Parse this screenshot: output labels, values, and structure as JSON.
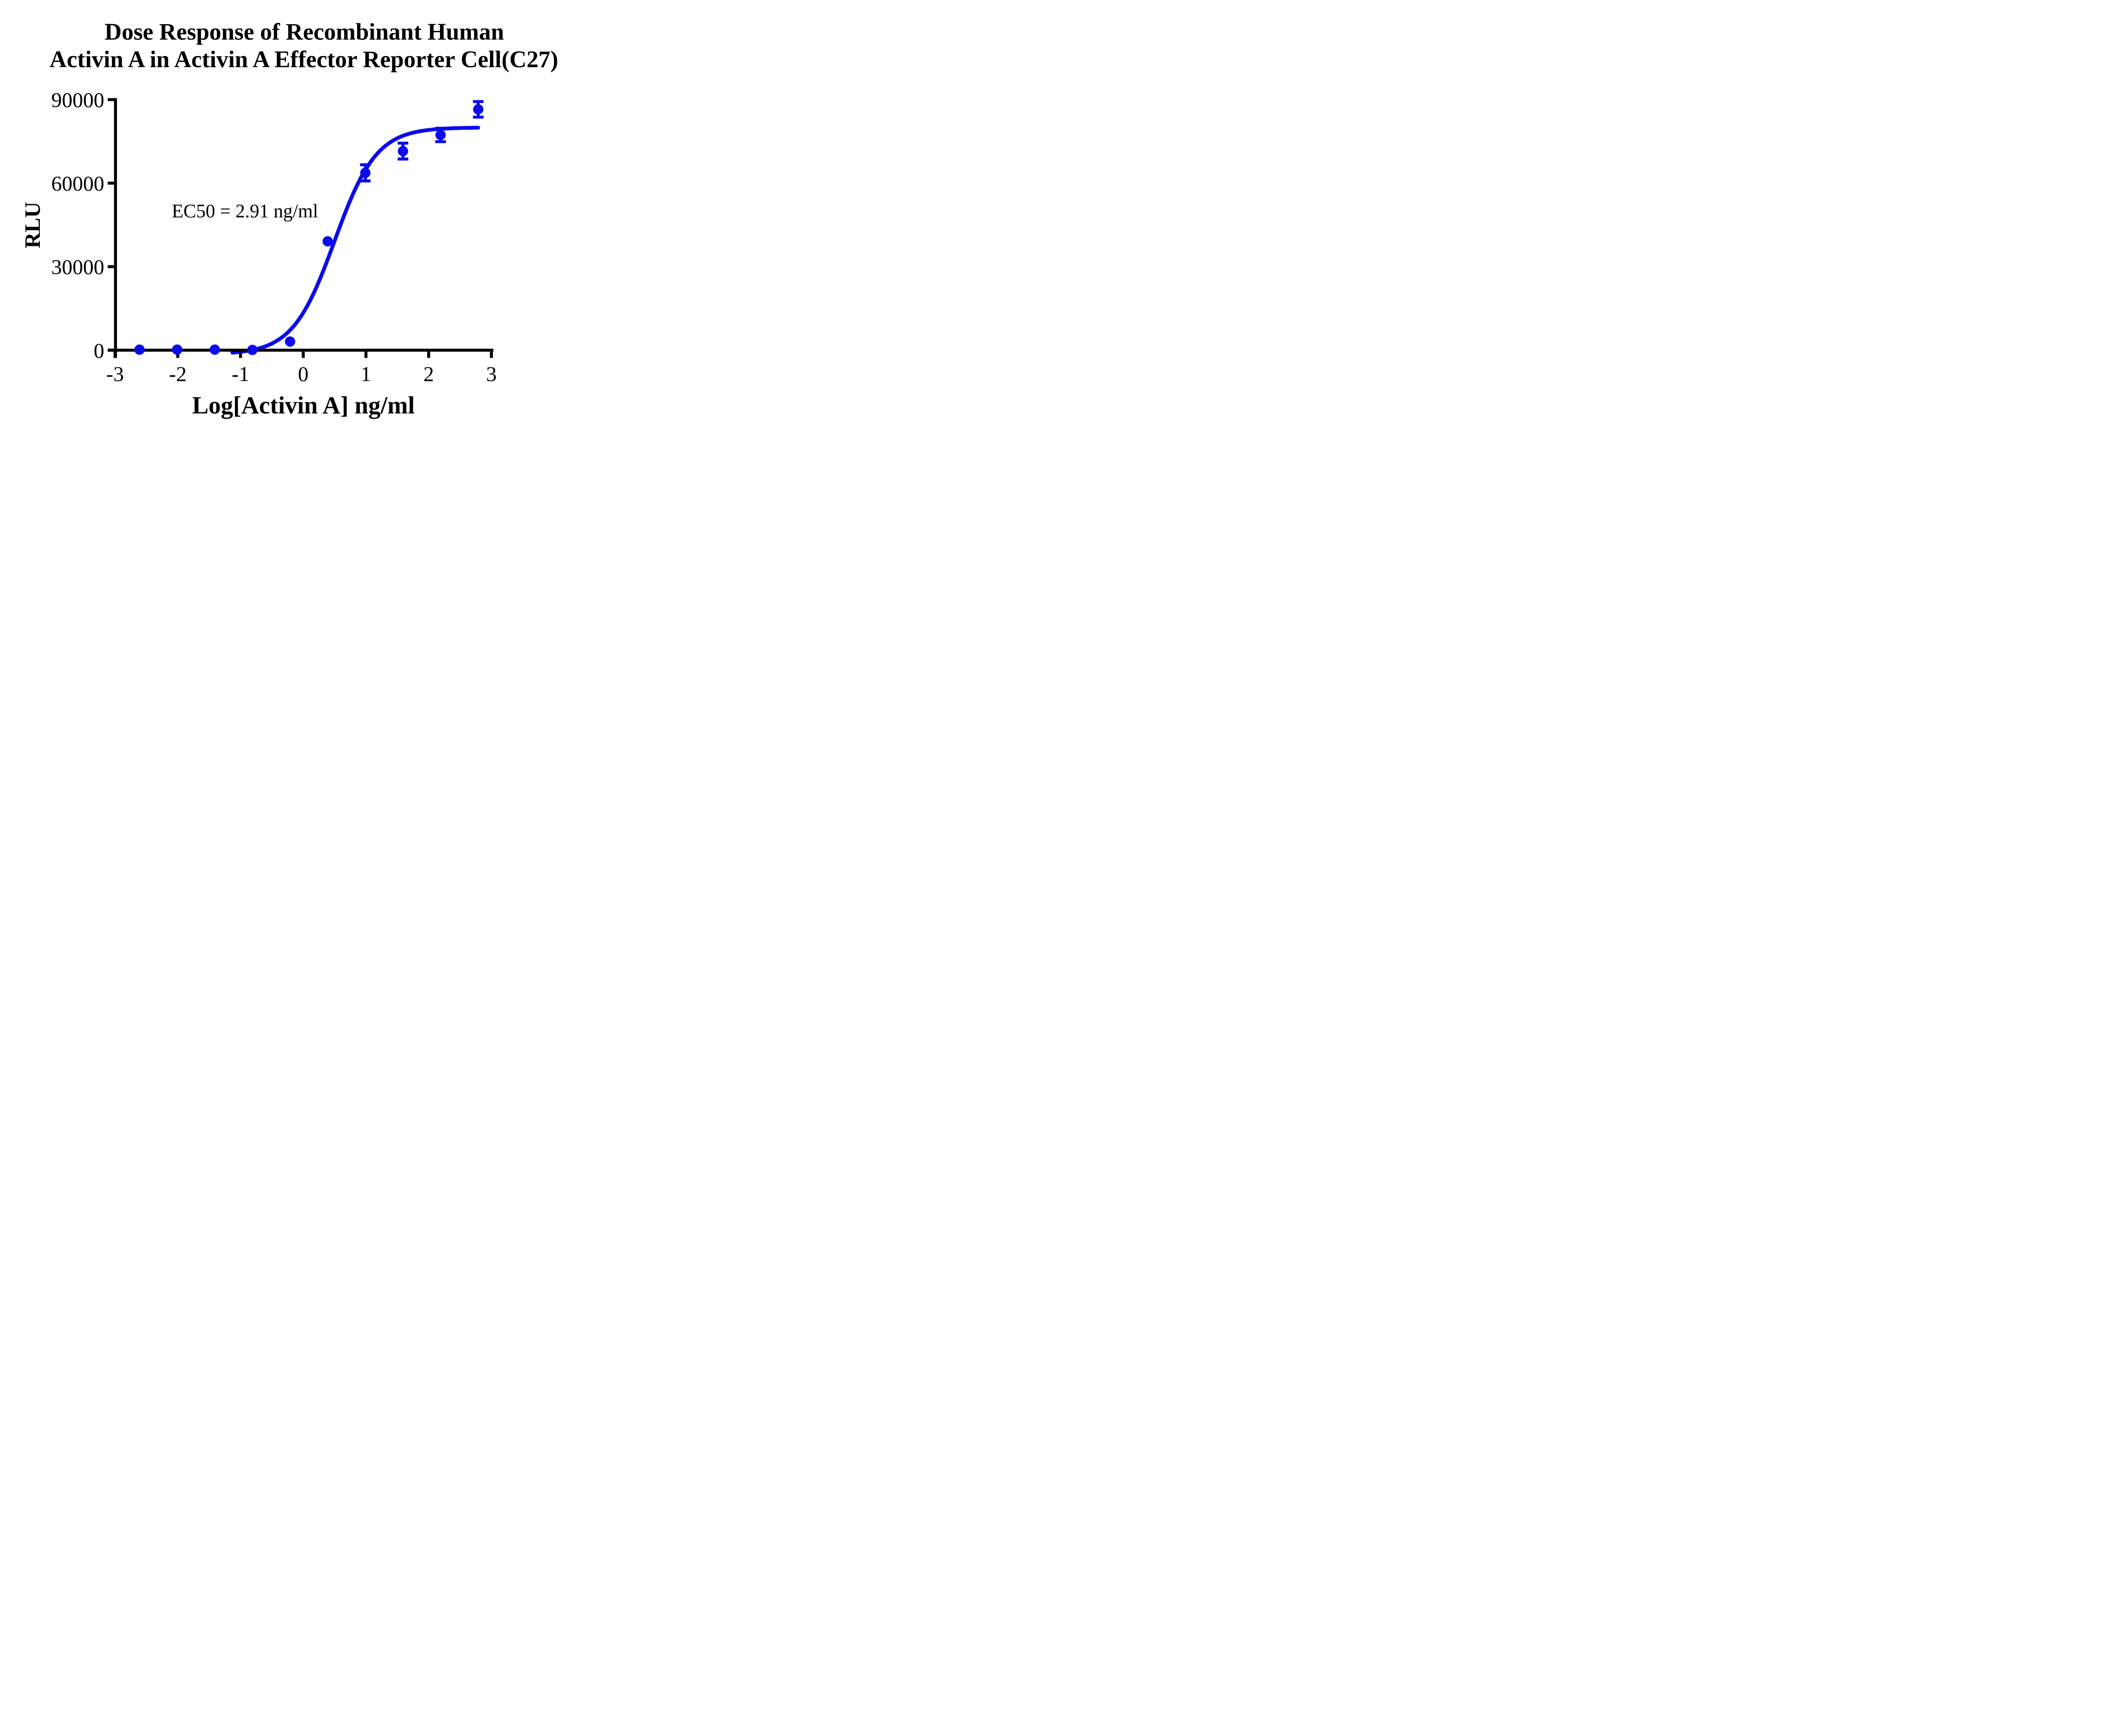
{
  "title": {
    "line1": "Dose Response of Recombinant Human",
    "line2": "Activin A in Activin A Effector Reporter Cell(C27)"
  },
  "chart_data": {
    "type": "scatter",
    "title": "Dose Response of Recombinant Human Activin A in Activin A Effector Reporter Cell(C27)",
    "xlabel": "Log[Activin A] ng/ml",
    "ylabel": "RLU",
    "xlim": [
      -3,
      3
    ],
    "ylim": [
      0,
      90000
    ],
    "x_ticks": [
      -3,
      -2,
      -1,
      0,
      1,
      2,
      3
    ],
    "y_ticks": [
      0,
      30000,
      60000,
      90000
    ],
    "grid": false,
    "legend": "none",
    "ec50_text": "EC50 = 2.91 ng/ml",
    "ec50_value_ng_ml": 2.91,
    "point_color": "#0b0bee",
    "axis_color": "#000000",
    "series": [
      {
        "name": "Activin A",
        "points": [
          {
            "x": -2.61,
            "y": 200
          },
          {
            "x": -2.01,
            "y": 200
          },
          {
            "x": -1.41,
            "y": 200
          },
          {
            "x": -0.81,
            "y": 100
          },
          {
            "x": -0.21,
            "y": 3100
          },
          {
            "x": 0.39,
            "y": 39100
          },
          {
            "x": 0.99,
            "y": 63700,
            "err": 2900
          },
          {
            "x": 1.59,
            "y": 71500,
            "err": 2850
          },
          {
            "x": 2.19,
            "y": 77300,
            "err": 2400
          },
          {
            "x": 2.79,
            "y": 86500,
            "err": 2800
          }
        ]
      }
    ],
    "fit_curve": {
      "model": "4PL",
      "bottom": -1500,
      "top": 80000,
      "log_ec50": 0.5,
      "hill": 1.3,
      "x_start": -1.13,
      "x_end": 2.79
    }
  }
}
